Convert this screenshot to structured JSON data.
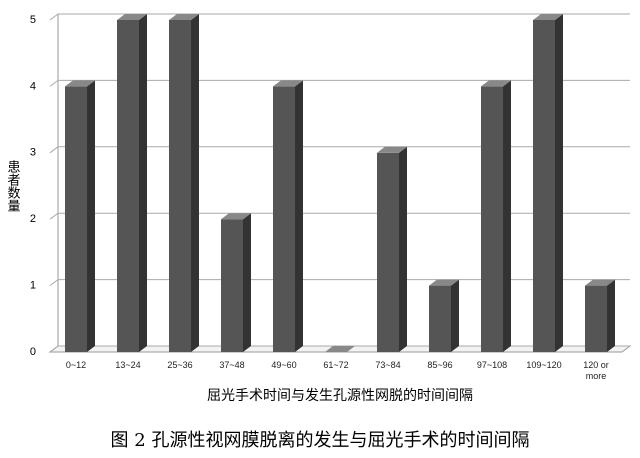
{
  "chart_data": {
    "type": "bar3d",
    "categories": [
      "0~12",
      "13~24",
      "25~36",
      "37~48",
      "49~60",
      "61~72",
      "73~84",
      "85~96",
      "97~108",
      "109~120",
      "120 or more"
    ],
    "values": [
      4,
      5,
      5,
      2,
      4,
      0,
      3,
      1,
      4,
      5,
      1
    ],
    "color": "#555555",
    "ylim": [
      0,
      5
    ],
    "yticks": [
      0,
      1,
      2,
      3,
      4,
      5
    ],
    "grid": true,
    "y_label": "患者数量",
    "x_label": "屈光手术时间与发生孔源性网脱的时间间隔",
    "caption": "图 2 孔源性视网膜脱离的发生与屈光手术的时间间隔"
  }
}
